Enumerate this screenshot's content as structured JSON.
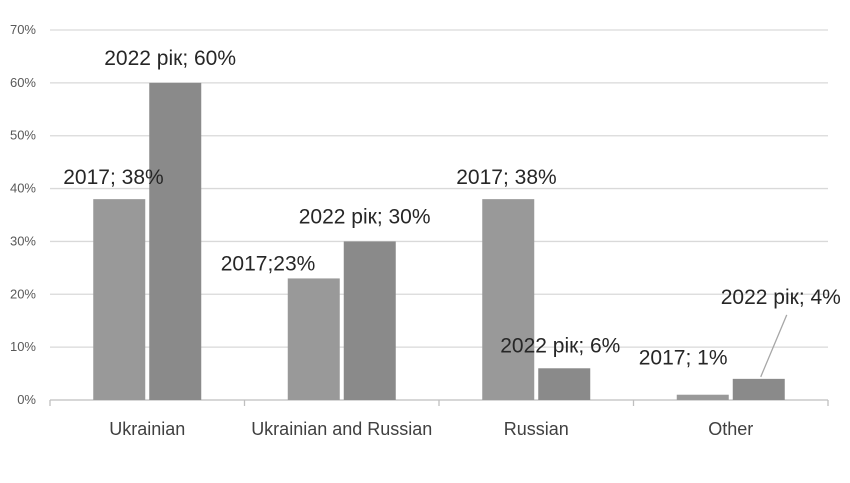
{
  "chart_data": {
    "type": "bar",
    "categories": [
      "Ukrainian",
      "Ukrainian and Russian",
      "Russian",
      "Other"
    ],
    "series": [
      {
        "values": [
          38,
          23,
          38,
          1
        ],
        "labels": [
          "2017;  38%",
          "2017;23%",
          "2017; 38%",
          "2017; 1%"
        ],
        "color": "#999999"
      },
      {
        "values": [
          60,
          30,
          6,
          4
        ],
        "labels": [
          "2022 рік; 60%",
          "2022 рік; 30%",
          "2022 рік; 6%",
          "2022 рік; 4%"
        ],
        "color": "#8a8a8a"
      }
    ],
    "ylim": [
      0,
      70
    ],
    "yticks": [
      "0%",
      "10%",
      "20%",
      "30%",
      "40%",
      "50%",
      "60%",
      "70%"
    ],
    "grid": true,
    "gridColor": "#d9d9d9"
  }
}
